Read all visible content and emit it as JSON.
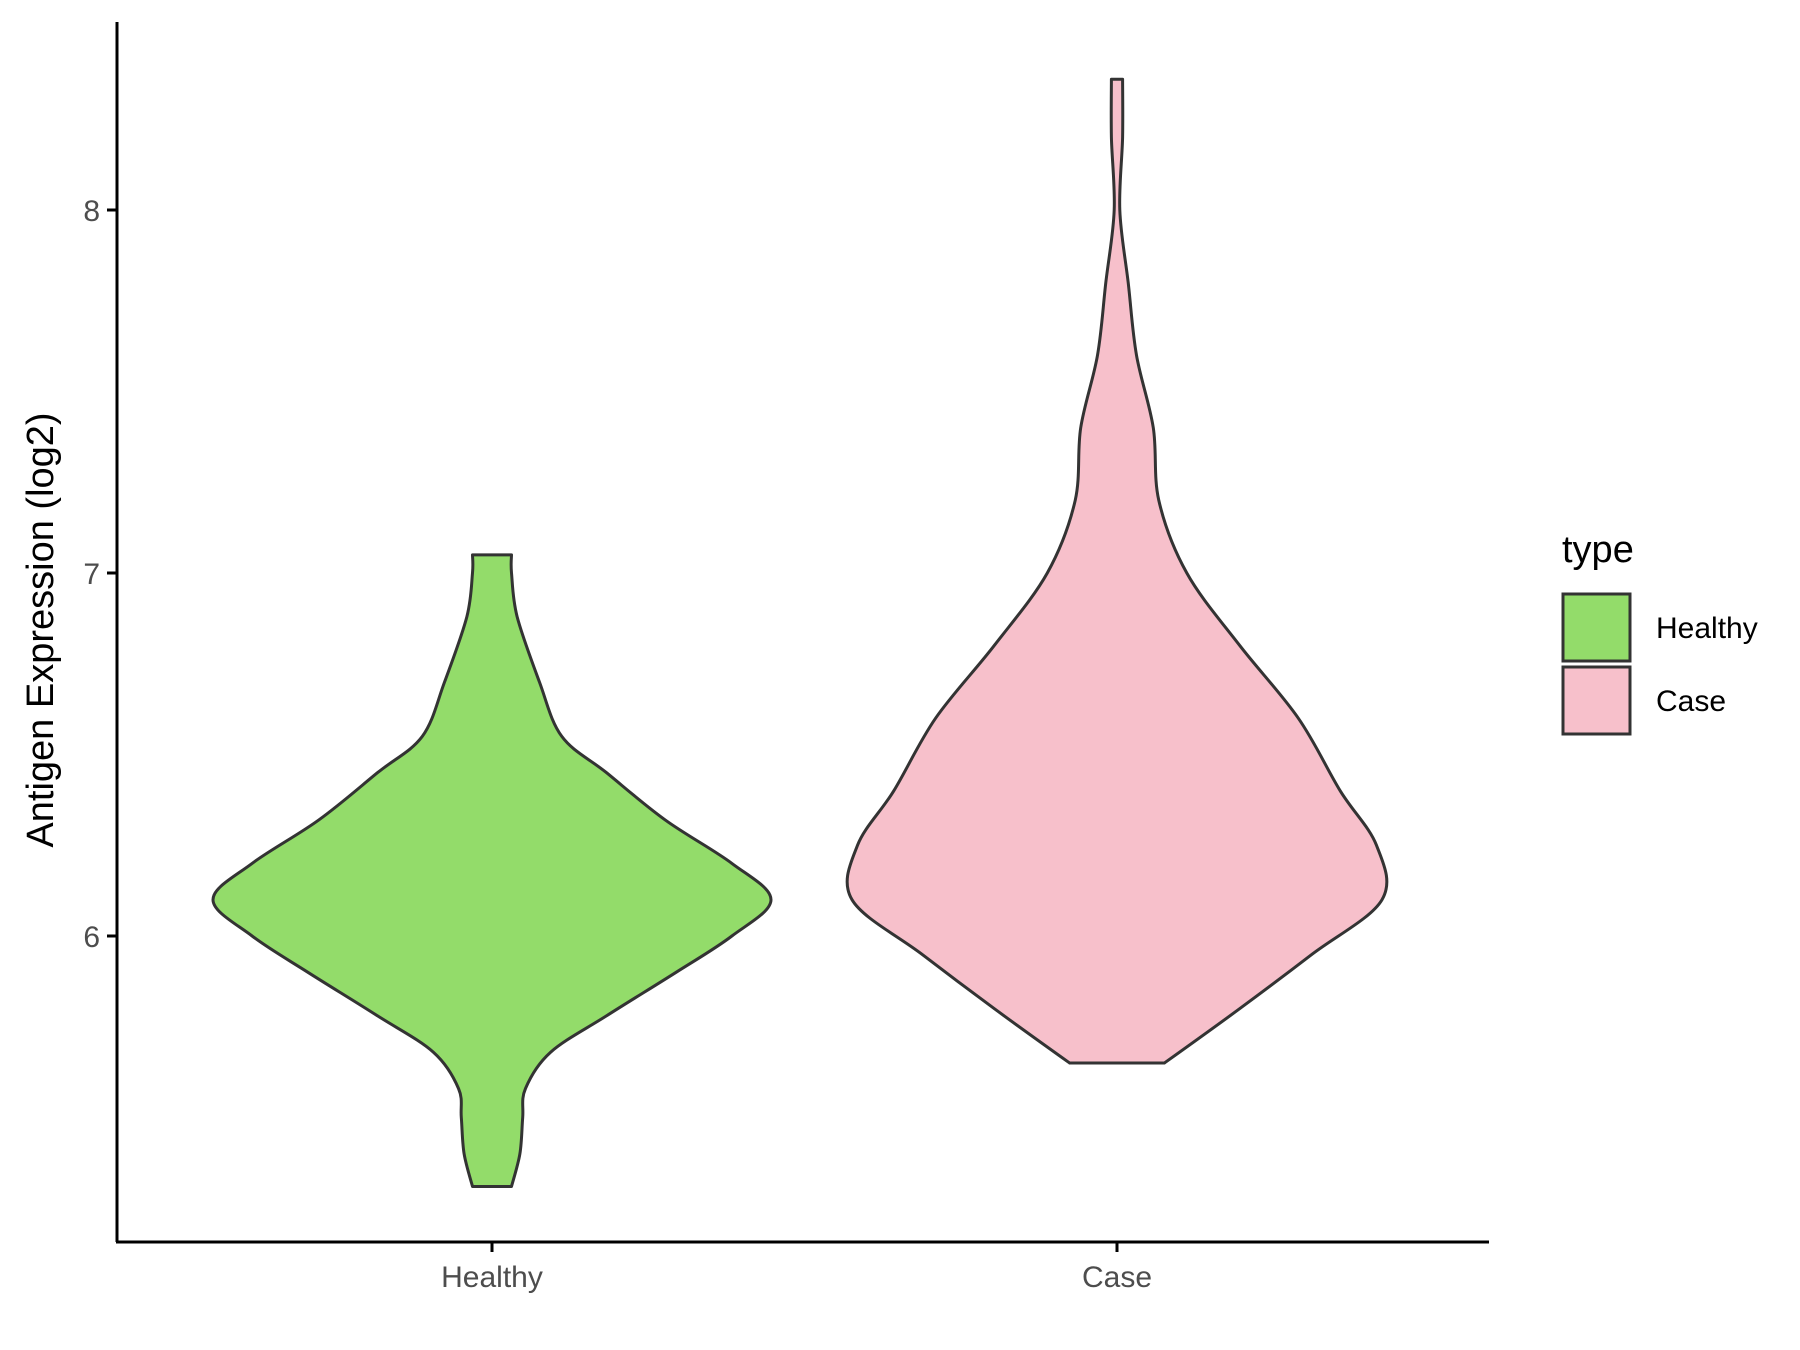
{
  "chart_data": {
    "type": "violin",
    "title": "",
    "xlabel": "",
    "ylabel": "Antigen Expression (log2)",
    "categories": [
      "Healthy",
      "Case"
    ],
    "y_ticks": [
      6,
      7,
      8
    ],
    "ylim": [
      5.2,
      8.5
    ],
    "grid": false,
    "legend": {
      "title": "type",
      "position": "right",
      "entries": [
        {
          "label": "Healthy",
          "color": "#93dc6a"
        },
        {
          "label": "Case",
          "color": "#f7c0cb"
        }
      ]
    },
    "series": [
      {
        "name": "Healthy",
        "color": "#93dc6a",
        "min": 5.31,
        "max": 7.05,
        "density_profile": [
          {
            "y": 5.31,
            "w": 0.07
          },
          {
            "y": 5.4,
            "w": 0.1
          },
          {
            "y": 5.5,
            "w": 0.11
          },
          {
            "y": 5.58,
            "w": 0.12
          },
          {
            "y": 5.68,
            "w": 0.21
          },
          {
            "y": 5.78,
            "w": 0.41
          },
          {
            "y": 5.9,
            "w": 0.66
          },
          {
            "y": 6.0,
            "w": 0.86
          },
          {
            "y": 6.1,
            "w": 1.0
          },
          {
            "y": 6.2,
            "w": 0.86
          },
          {
            "y": 6.32,
            "w": 0.62
          },
          {
            "y": 6.45,
            "w": 0.41
          },
          {
            "y": 6.55,
            "w": 0.25
          },
          {
            "y": 6.7,
            "w": 0.17
          },
          {
            "y": 6.88,
            "w": 0.09
          },
          {
            "y": 7.0,
            "w": 0.07
          },
          {
            "y": 7.05,
            "w": 0.07
          }
        ]
      },
      {
        "name": "Case",
        "color": "#f7c0cb",
        "min": 5.65,
        "max": 8.36,
        "density_profile": [
          {
            "y": 5.65,
            "w": 0.17
          },
          {
            "y": 5.8,
            "w": 0.44
          },
          {
            "y": 5.95,
            "w": 0.7
          },
          {
            "y": 6.1,
            "w": 0.95
          },
          {
            "y": 6.25,
            "w": 0.93
          },
          {
            "y": 6.4,
            "w": 0.8
          },
          {
            "y": 6.6,
            "w": 0.65
          },
          {
            "y": 6.8,
            "w": 0.44
          },
          {
            "y": 7.0,
            "w": 0.25
          },
          {
            "y": 7.2,
            "w": 0.15
          },
          {
            "y": 7.4,
            "w": 0.13
          },
          {
            "y": 7.6,
            "w": 0.07
          },
          {
            "y": 7.8,
            "w": 0.04
          },
          {
            "y": 8.0,
            "w": 0.01
          },
          {
            "y": 8.2,
            "w": 0.02
          },
          {
            "y": 8.36,
            "w": 0.02
          }
        ]
      }
    ]
  }
}
